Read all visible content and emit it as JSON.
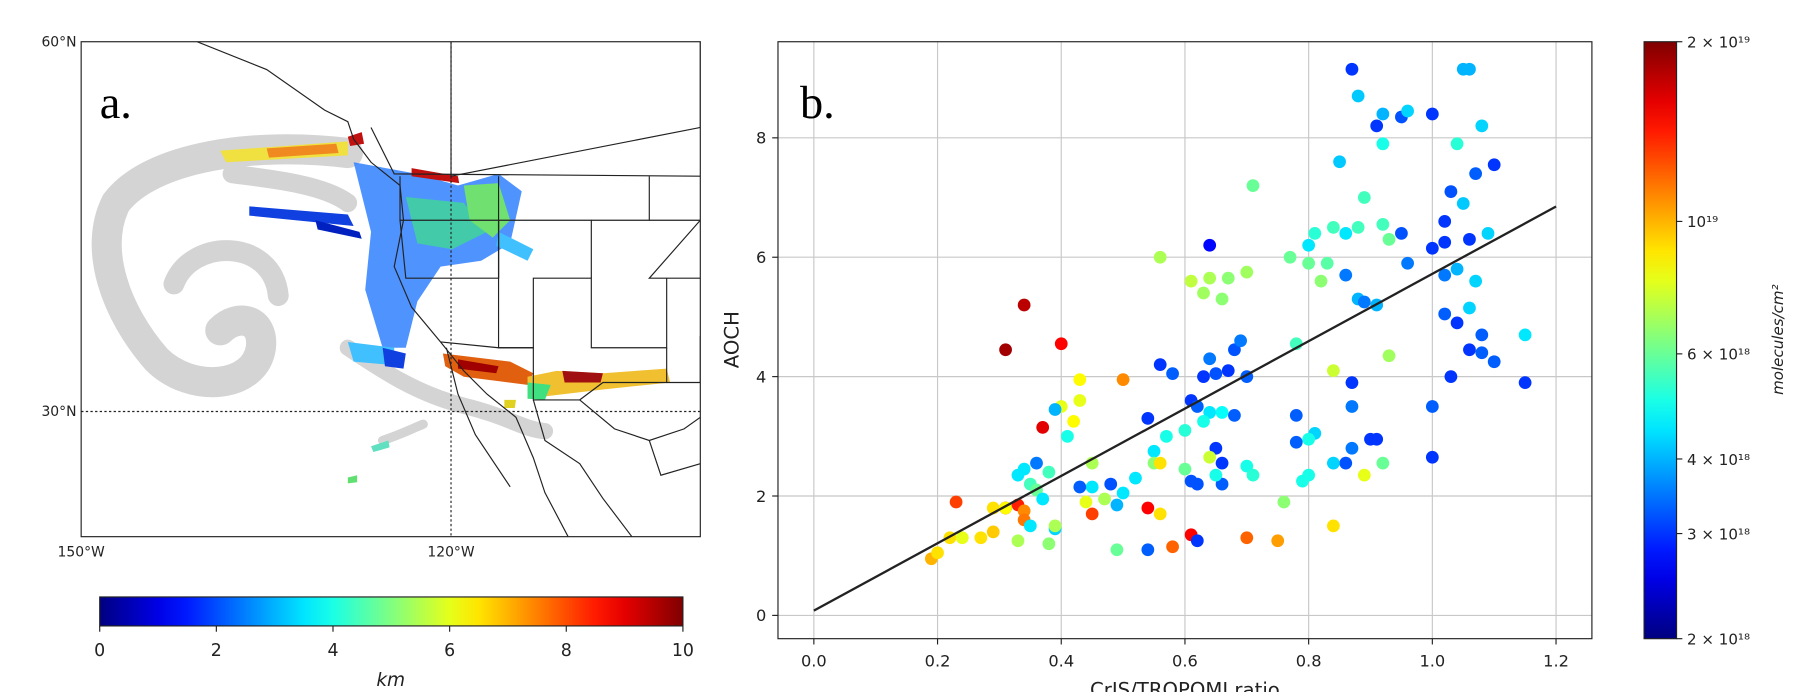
{
  "chart_data": [
    {
      "type": "map",
      "panel_label": "a.",
      "lat_labels": [
        "60°N",
        "30°N"
      ],
      "lon_labels": [
        "150°W",
        "120°W"
      ],
      "colorbar": {
        "colormap": "jet",
        "lim": [
          0,
          10
        ],
        "ticks": [
          0,
          2,
          4,
          6,
          8,
          10
        ],
        "label": "km"
      }
    },
    {
      "type": "scatter",
      "panel_label": "b.",
      "xlabel": "CrIS/TROPOMI ratio",
      "ylabel": "AOCH",
      "xlim": [
        -0.058,
        1.258
      ],
      "ylim": [
        -0.39,
        9.61
      ],
      "xticks": [
        {
          "value": 0,
          "label": "0.0"
        },
        0.2,
        0.4,
        0.6,
        0.8,
        {
          "value": 1,
          "label": "1.0"
        },
        1.2
      ],
      "yticks": [
        0,
        2,
        4,
        6,
        8
      ],
      "grid": true,
      "fit": {
        "color": "#222222",
        "x": [
          0,
          1.2
        ],
        "values": [
          0.08,
          6.85
        ]
      },
      "points": [
        [
          0.87,
          9.15,
          3e+18
        ],
        [
          0.88,
          8.7,
          4.2e+18
        ],
        [
          0.91,
          8.2,
          3e+18
        ],
        [
          0.92,
          8.4,
          4e+18
        ],
        [
          0.95,
          8.35,
          3.2e+18
        ],
        [
          0.96,
          8.45,
          4.3e+18
        ],
        [
          1.0,
          8.4,
          3e+18
        ],
        [
          1.05,
          9.15,
          4e+18
        ],
        [
          1.06,
          9.15,
          4e+18
        ],
        [
          0.85,
          7.6,
          4.2e+18
        ],
        [
          0.92,
          7.9,
          5e+18
        ],
        [
          1.08,
          8.2,
          4.3e+18
        ],
        [
          1.04,
          7.9,
          5.2e+18
        ],
        [
          1.1,
          7.55,
          3e+18
        ],
        [
          1.07,
          7.4,
          3.3e+18
        ],
        [
          1.03,
          7.1,
          3.2e+18
        ],
        [
          0.89,
          7.0,
          5.5e+18
        ],
        [
          0.71,
          7.2,
          6e+18
        ],
        [
          0.84,
          6.5,
          5.5e+18
        ],
        [
          0.86,
          6.4,
          4.5e+18
        ],
        [
          0.88,
          6.5,
          5.5e+18
        ],
        [
          0.92,
          6.55,
          5.5e+18
        ],
        [
          0.93,
          6.3,
          6e+18
        ],
        [
          0.95,
          6.4,
          3.2e+18
        ],
        [
          1.02,
          6.6,
          3e+18
        ],
        [
          1.05,
          6.9,
          4.2e+18
        ],
        [
          1.06,
          6.3,
          3e+18
        ],
        [
          1.09,
          6.4,
          4.3e+18
        ],
        [
          1.0,
          6.15,
          3e+18
        ],
        [
          1.02,
          6.25,
          3e+18
        ],
        [
          0.81,
          6.4,
          5.2e+18
        ],
        [
          0.8,
          6.2,
          4.5e+18
        ],
        [
          0.77,
          6.0,
          6e+18
        ],
        [
          0.56,
          6.0,
          7e+18
        ],
        [
          0.64,
          6.2,
          2.7e+18
        ],
        [
          0.61,
          5.6,
          7.3e+18
        ],
        [
          0.64,
          5.65,
          7e+18
        ],
        [
          0.67,
          5.65,
          6.5e+18
        ],
        [
          0.7,
          5.75,
          6.8e+18
        ],
        [
          0.8,
          5.9,
          6e+18
        ],
        [
          0.82,
          5.6,
          6.5e+18
        ],
        [
          0.83,
          5.9,
          5.8e+18
        ],
        [
          0.86,
          5.7,
          3.5e+18
        ],
        [
          0.88,
          5.3,
          4e+18
        ],
        [
          0.89,
          5.25,
          3.5e+18
        ],
        [
          0.91,
          5.2,
          4e+18
        ],
        [
          0.96,
          5.9,
          3.5e+18
        ],
        [
          1.02,
          5.7,
          3.5e+18
        ],
        [
          1.04,
          5.8,
          4e+18
        ],
        [
          1.07,
          5.6,
          4.3e+18
        ],
        [
          1.06,
          5.15,
          4.3e+18
        ],
        [
          1.02,
          5.05,
          3.3e+18
        ],
        [
          1.04,
          4.9,
          3e+18
        ],
        [
          1.06,
          4.45,
          3e+18
        ],
        [
          1.08,
          4.4,
          3.3e+18
        ],
        [
          1.08,
          4.7,
          3.3e+18
        ],
        [
          1.1,
          4.25,
          3.3e+18
        ],
        [
          1.15,
          4.7,
          4.5e+18
        ],
        [
          1.15,
          3.9,
          3e+18
        ],
        [
          1.03,
          4.0,
          3e+18
        ],
        [
          1.0,
          3.5,
          3.3e+18
        ],
        [
          1.0,
          2.65,
          3e+18
        ],
        [
          0.63,
          5.4,
          6.8e+18
        ],
        [
          0.66,
          5.3,
          6.5e+18
        ],
        [
          0.78,
          4.55,
          5.5e+18
        ],
        [
          0.84,
          4.1,
          7.5e+18
        ],
        [
          0.87,
          3.9,
          3e+18
        ],
        [
          0.87,
          3.5,
          3.5e+18
        ],
        [
          0.93,
          4.35,
          6.8e+18
        ],
        [
          0.81,
          3.05,
          4.3e+18
        ],
        [
          0.78,
          3.35,
          3.3e+18
        ],
        [
          0.8,
          2.95,
          5e+18
        ],
        [
          0.78,
          2.9,
          3.3e+18
        ],
        [
          0.87,
          2.8,
          3.5e+18
        ],
        [
          0.9,
          2.95,
          3e+18
        ],
        [
          0.91,
          2.95,
          3e+18
        ],
        [
          0.86,
          2.55,
          3.2e+18
        ],
        [
          0.92,
          2.55,
          6e+18
        ],
        [
          0.89,
          2.35,
          8e+18
        ],
        [
          0.84,
          2.55,
          4.3e+18
        ],
        [
          0.8,
          2.35,
          5e+18
        ],
        [
          0.79,
          2.25,
          5e+18
        ],
        [
          0.76,
          1.9,
          6.5e+18
        ],
        [
          0.84,
          1.5,
          9e+18
        ],
        [
          0.64,
          4.3,
          3.5e+18
        ],
        [
          0.65,
          4.05,
          3.2e+18
        ],
        [
          0.67,
          4.1,
          3e+18
        ],
        [
          0.68,
          4.45,
          3.2e+18
        ],
        [
          0.69,
          4.6,
          3.5e+18
        ],
        [
          0.7,
          4.0,
          3.3e+18
        ],
        [
          0.63,
          4.0,
          3e+18
        ],
        [
          0.58,
          4.05,
          3.3e+18
        ],
        [
          0.56,
          4.2,
          3e+18
        ],
        [
          0.54,
          3.3,
          3e+18
        ],
        [
          0.61,
          3.6,
          3e+18
        ],
        [
          0.62,
          3.5,
          3.3e+18
        ],
        [
          0.64,
          3.4,
          4.5e+18
        ],
        [
          0.66,
          3.4,
          4.8e+18
        ],
        [
          0.68,
          3.35,
          3.3e+18
        ],
        [
          0.63,
          3.25,
          5e+18
        ],
        [
          0.55,
          2.75,
          4.5e+18
        ],
        [
          0.57,
          3.0,
          5e+18
        ],
        [
          0.6,
          3.1,
          5.2e+18
        ],
        [
          0.65,
          2.8,
          3e+18
        ],
        [
          0.66,
          2.55,
          3e+18
        ],
        [
          0.66,
          2.2,
          3.3e+18
        ],
        [
          0.62,
          2.2,
          3.2e+18
        ],
        [
          0.61,
          2.25,
          3.2e+18
        ],
        [
          0.65,
          2.35,
          5e+18
        ],
        [
          0.7,
          2.5,
          5e+18
        ],
        [
          0.71,
          2.35,
          5.2e+18
        ],
        [
          0.64,
          2.65,
          7.5e+18
        ],
        [
          0.6,
          2.45,
          6e+18
        ],
        [
          0.55,
          2.55,
          6.5e+18
        ],
        [
          0.56,
          2.55,
          9e+18
        ],
        [
          0.52,
          2.3,
          4.5e+18
        ],
        [
          0.5,
          2.05,
          4.5e+18
        ],
        [
          0.49,
          1.85,
          4e+18
        ],
        [
          0.48,
          2.2,
          3.2e+18
        ],
        [
          0.45,
          2.15,
          4.5e+18
        ],
        [
          0.43,
          2.15,
          3.3e+18
        ],
        [
          0.5,
          3.95,
          1.1e+19
        ],
        [
          0.43,
          3.95,
          8.5e+18
        ],
        [
          0.43,
          3.6,
          8e+18
        ],
        [
          0.42,
          3.25,
          8.5e+18
        ],
        [
          0.4,
          3.5,
          8e+18
        ],
        [
          0.39,
          3.45,
          4e+18
        ],
        [
          0.41,
          3.0,
          5e+18
        ],
        [
          0.45,
          2.55,
          7e+18
        ],
        [
          0.34,
          5.2,
          1.75e+19
        ],
        [
          0.31,
          4.45,
          1.85e+19
        ],
        [
          0.4,
          4.55,
          1.5e+19
        ],
        [
          0.37,
          3.15,
          1.6e+19
        ],
        [
          0.23,
          1.9,
          1.3e+19
        ],
        [
          0.33,
          1.85,
          1.4e+19
        ],
        [
          0.31,
          1.8,
          1.7e+19
        ],
        [
          0.34,
          1.75,
          1.1e+19
        ],
        [
          0.34,
          1.6,
          1.15e+19
        ],
        [
          0.45,
          1.7,
          1.3e+19
        ],
        [
          0.54,
          1.8,
          1.5e+19
        ],
        [
          0.56,
          1.7,
          9e+18
        ],
        [
          0.61,
          1.35,
          1.5e+19
        ],
        [
          0.62,
          1.25,
          3e+18
        ],
        [
          0.54,
          1.1,
          3.3e+18
        ],
        [
          0.58,
          1.15,
          1.2e+19
        ],
        [
          0.49,
          1.1,
          6e+18
        ],
        [
          0.7,
          1.3,
          1.2e+19
        ],
        [
          0.75,
          1.25,
          1.05e+19
        ],
        [
          0.19,
          0.95,
          1e+19
        ],
        [
          0.2,
          1.05,
          9e+18
        ],
        [
          0.22,
          1.3,
          9e+18
        ],
        [
          0.24,
          1.3,
          8e+18
        ],
        [
          0.27,
          1.3,
          9e+18
        ],
        [
          0.29,
          1.4,
          9.5e+18
        ],
        [
          0.29,
          1.8,
          9e+18
        ],
        [
          0.31,
          1.8,
          8.5e+18
        ],
        [
          0.33,
          1.25,
          7e+18
        ],
        [
          0.33,
          2.35,
          4.5e+18
        ],
        [
          0.34,
          2.45,
          4.5e+18
        ],
        [
          0.36,
          2.55,
          3.5e+18
        ],
        [
          0.35,
          2.2,
          5.5e+18
        ],
        [
          0.36,
          2.1,
          6e+18
        ],
        [
          0.37,
          1.95,
          4.5e+18
        ],
        [
          0.35,
          1.5,
          4.5e+18
        ],
        [
          0.38,
          1.2,
          6.5e+18
        ],
        [
          0.39,
          1.45,
          4.3e+18
        ],
        [
          0.39,
          1.5,
          7e+18
        ],
        [
          0.44,
          1.9,
          8e+18
        ],
        [
          0.47,
          1.95,
          7e+18
        ],
        [
          0.38,
          2.4,
          5.5e+18
        ]
      ],
      "colorbar": {
        "colormap": "jet",
        "log": true,
        "lim": [
          2e+18,
          2e+19
        ],
        "label": "molecules/cm²",
        "ticks": [
          {
            "value": 2e+19,
            "label": "2 × 10¹⁹"
          },
          {
            "value": 1e+19,
            "label": "10¹⁹"
          },
          {
            "value": 6e+18,
            "label": "6 × 10¹⁸"
          },
          {
            "value": 4e+18,
            "label": "4 × 10¹⁸"
          },
          {
            "value": 3e+18,
            "label": "3 × 10¹⁸"
          },
          {
            "value": 2e+18,
            "label": "2 × 10¹⁸"
          }
        ]
      }
    }
  ]
}
